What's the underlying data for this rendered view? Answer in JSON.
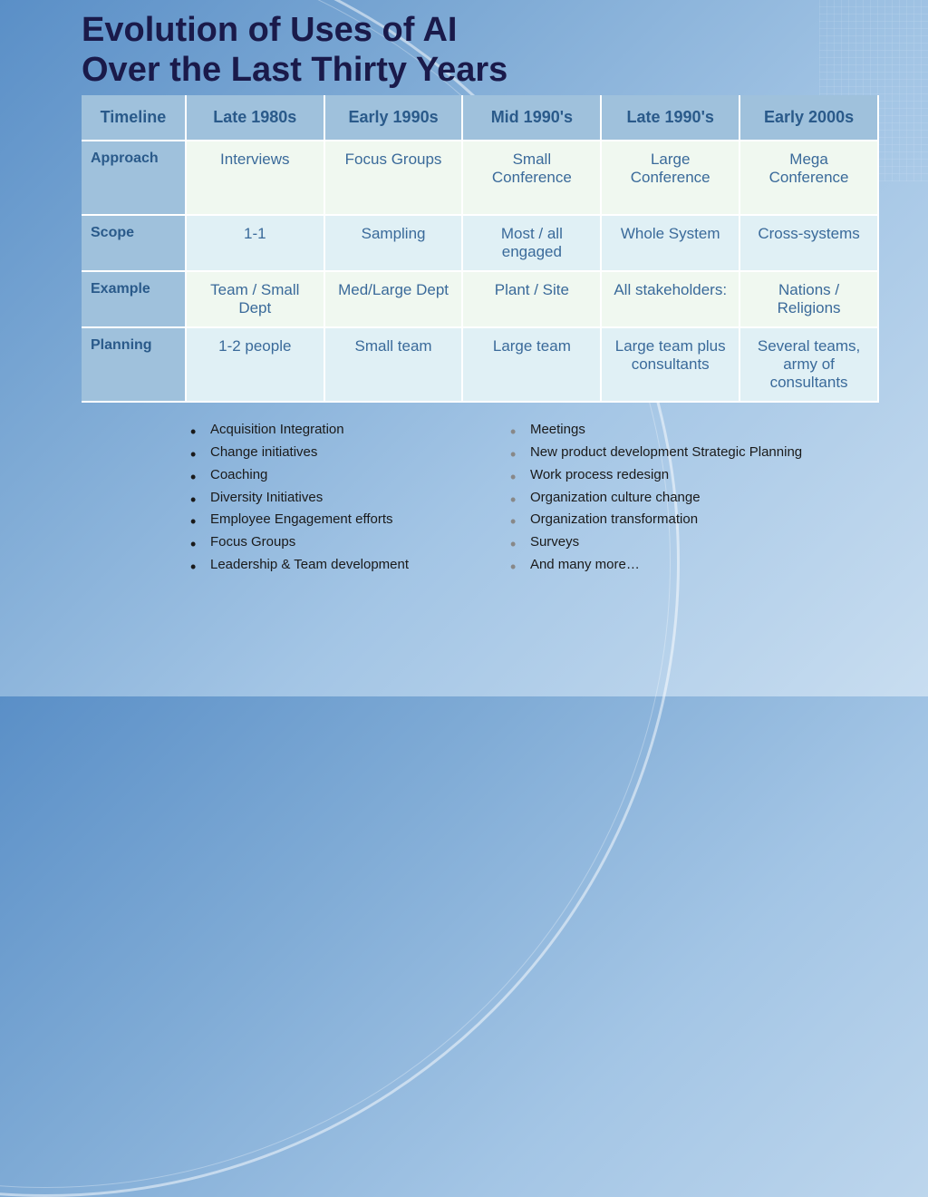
{
  "title_line1": "Evolution of Uses of  AI",
  "title_line2": "Over the Last Thirty Years",
  "table": {
    "header": [
      "Timeline",
      "Late 1980s",
      "Early 1990s",
      "Mid 1990's",
      "Late 1990's",
      "Early 2000s"
    ],
    "rows": [
      {
        "label": "Approach",
        "cells": [
          "Interviews",
          "Focus Groups",
          "Small Conference",
          "Large Conference",
          "Mega Conference"
        ]
      },
      {
        "label": "Scope",
        "cells": [
          "1-1",
          "Sampling",
          "Most / all engaged",
          "Whole System",
          "Cross-systems"
        ]
      },
      {
        "label": "Example",
        "cells": [
          "Team / Small Dept",
          "Med/Large Dept",
          "Plant / Site",
          "All stakeholders:",
          "Nations / Religions"
        ]
      },
      {
        "label": "Planning",
        "cells": [
          "1-2 people",
          "Small team",
          "Large team",
          "Large team plus consultants",
          "Several teams, army of consultants"
        ]
      }
    ],
    "header_bg": "#9fc1dc",
    "header_text_color": "#2a5a8a",
    "row_label_bg": "#9fc1dc",
    "cell_text_color": "#3a6a9a",
    "odd_row_bg": "#f0f8f0",
    "even_row_bg": "#e0f0f5",
    "border_color": "#ffffff"
  },
  "bullets_left": [
    "Acquisition Integration",
    "Change initiatives",
    "Coaching",
    "Diversity Initiatives",
    "Employee Engagement efforts",
    "Focus Groups",
    "Leadership & Team development"
  ],
  "bullets_right": [
    "Meetings",
    "New product development Strategic Planning",
    "Work process redesign",
    "Organization culture change",
    "Organization transformation",
    "Surveys",
    "And many more…"
  ],
  "styling": {
    "title_color": "#1a1a4a",
    "title_fontsize": 38,
    "body_fontsize": 15,
    "table_fontsize": 17,
    "bg_gradient": [
      "#5a8fc7",
      "#7eaad5",
      "#a3c5e5",
      "#c8ddf0"
    ],
    "arc_color": "rgba(255,255,255,0.5)",
    "left_bullet_color": "#1a1a1a",
    "right_bullet_color": "#888888"
  }
}
